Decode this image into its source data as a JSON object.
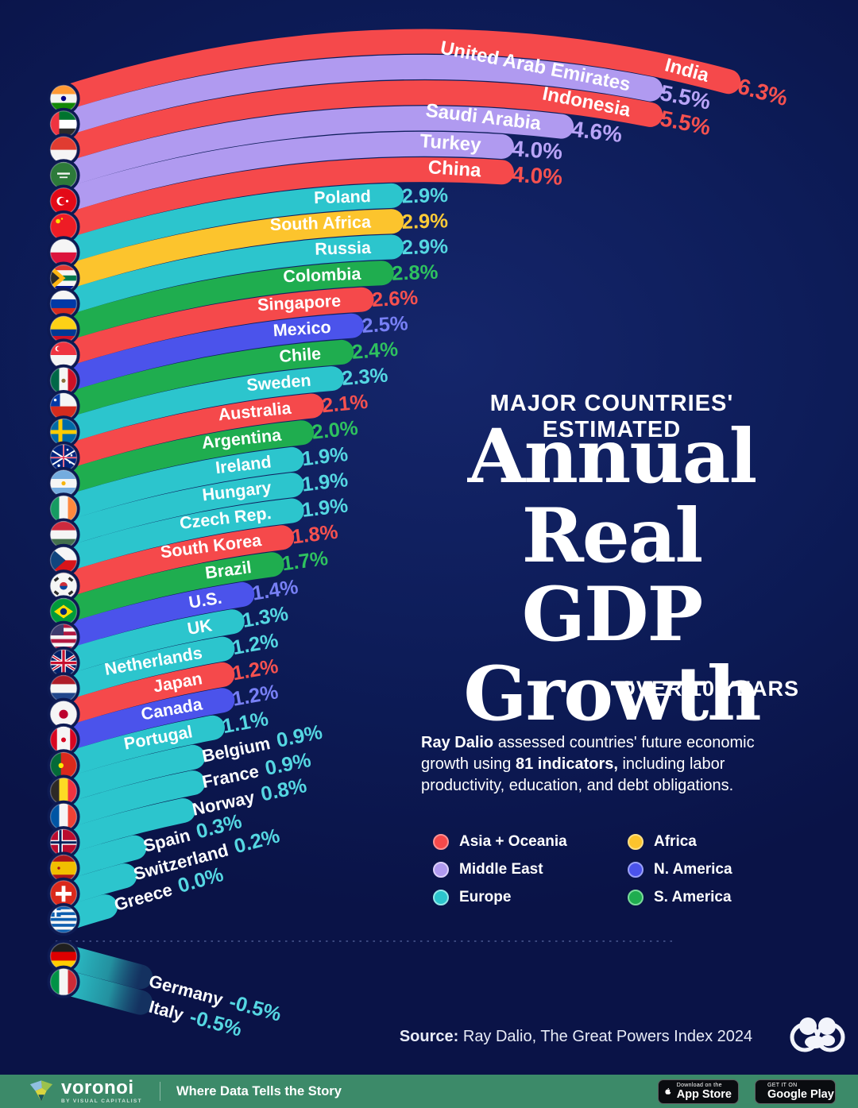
{
  "page": {
    "background": "#0d1c58",
    "footer_background": "#3c8a69"
  },
  "chart_data": {
    "type": "bar",
    "title": "Major Countries' Estimated Annual Real GDP Growth Over 10 Years",
    "title_eyebrow": "MAJOR COUNTRIES' ESTIMATED",
    "title_line1": "Annual",
    "title_line2": "Real GDP",
    "title_line3": "Growth",
    "title_suffix": "OVER 10 YEARS",
    "desc_b1": "Ray Dalio",
    "desc_t1": " assessed countries' future economic growth using ",
    "desc_b2": "81 indicators,",
    "desc_t2": " including labor productivity, education, and debt obligations.",
    "unit": "%",
    "regions": {
      "asia_oceania": {
        "label": "Asia + Oceania",
        "bar": "#F5494B",
        "value": "#F6514F",
        "ring": "#FA9193"
      },
      "middle_east": {
        "label": "Middle East",
        "bar": "#B09AF0",
        "value": "#B9A4F7",
        "ring": "#DCD0FA"
      },
      "europe": {
        "label": "Europe",
        "bar": "#2CC5CD",
        "value": "#55D7E2",
        "ring": "#93E9E9"
      },
      "africa": {
        "label": "Africa",
        "bar": "#FCC42D",
        "value": "#FFCB37",
        "ring": "#FDDF85"
      },
      "n_america": {
        "label": "N. America",
        "bar": "#4B53EB",
        "value": "#7880F6",
        "ring": "#9BA1F8"
      },
      "s_america": {
        "label": "S. America",
        "bar": "#1FAD4F",
        "value": "#2EC15F",
        "ring": "#7BDB9B"
      }
    },
    "legend": [
      {
        "region": "asia_oceania"
      },
      {
        "region": "middle_east"
      },
      {
        "region": "europe"
      },
      {
        "region": "africa"
      },
      {
        "region": "n_america"
      },
      {
        "region": "s_america"
      }
    ],
    "countries": [
      {
        "id": "india",
        "name": "India",
        "value": 6.3,
        "display": "6.3%",
        "region": "asia_oceania"
      },
      {
        "id": "uae",
        "name": "United Arab Emirates",
        "value": 5.5,
        "display": "5.5%",
        "region": "middle_east"
      },
      {
        "id": "indonesia",
        "name": "Indonesia",
        "value": 5.5,
        "display": "5.5%",
        "region": "asia_oceania"
      },
      {
        "id": "saudi_arabia",
        "name": "Saudi Arabia",
        "value": 4.6,
        "display": "4.6%",
        "region": "middle_east"
      },
      {
        "id": "turkey",
        "name": "Turkey",
        "value": 4.0,
        "display": "4.0%",
        "region": "middle_east"
      },
      {
        "id": "china",
        "name": "China",
        "value": 4.0,
        "display": "4.0%",
        "region": "asia_oceania"
      },
      {
        "id": "poland",
        "name": "Poland",
        "value": 2.9,
        "display": "2.9%",
        "region": "europe"
      },
      {
        "id": "south_africa",
        "name": "South Africa",
        "value": 2.9,
        "display": "2.9%",
        "region": "africa"
      },
      {
        "id": "russia",
        "name": "Russia",
        "value": 2.9,
        "display": "2.9%",
        "region": "europe"
      },
      {
        "id": "colombia",
        "name": "Colombia",
        "value": 2.8,
        "display": "2.8%",
        "region": "s_america"
      },
      {
        "id": "singapore",
        "name": "Singapore",
        "value": 2.6,
        "display": "2.6%",
        "region": "asia_oceania"
      },
      {
        "id": "mexico",
        "name": "Mexico",
        "value": 2.5,
        "display": "2.5%",
        "region": "n_america"
      },
      {
        "id": "chile",
        "name": "Chile",
        "value": 2.4,
        "display": "2.4%",
        "region": "s_america"
      },
      {
        "id": "sweden",
        "name": "Sweden",
        "value": 2.3,
        "display": "2.3%",
        "region": "europe"
      },
      {
        "id": "australia",
        "name": "Australia",
        "value": 2.1,
        "display": "2.1%",
        "region": "asia_oceania"
      },
      {
        "id": "argentina",
        "name": "Argentina",
        "value": 2.0,
        "display": "2.0%",
        "region": "s_america"
      },
      {
        "id": "ireland",
        "name": "Ireland",
        "value": 1.9,
        "display": "1.9%",
        "region": "europe"
      },
      {
        "id": "hungary",
        "name": "Hungary",
        "value": 1.9,
        "display": "1.9%",
        "region": "europe"
      },
      {
        "id": "czech_republic",
        "name": "Czech Rep.",
        "value": 1.9,
        "display": "1.9%",
        "region": "europe"
      },
      {
        "id": "south_korea",
        "name": "South Korea",
        "value": 1.8,
        "display": "1.8%",
        "region": "asia_oceania"
      },
      {
        "id": "brazil",
        "name": "Brazil",
        "value": 1.7,
        "display": "1.7%",
        "region": "s_america"
      },
      {
        "id": "us",
        "name": "U.S.",
        "value": 1.4,
        "display": "1.4%",
        "region": "n_america"
      },
      {
        "id": "uk",
        "name": "UK",
        "value": 1.3,
        "display": "1.3%",
        "region": "europe"
      },
      {
        "id": "netherlands",
        "name": "Netherlands",
        "value": 1.2,
        "display": "1.2%",
        "region": "europe"
      },
      {
        "id": "japan",
        "name": "Japan",
        "value": 1.2,
        "display": "1.2%",
        "region": "asia_oceania"
      },
      {
        "id": "canada",
        "name": "Canada",
        "value": 1.2,
        "display": "1.2%",
        "region": "n_america"
      },
      {
        "id": "portugal",
        "name": "Portugal",
        "value": 1.1,
        "display": "1.1%",
        "region": "europe"
      },
      {
        "id": "belgium",
        "name": "Belgium",
        "value": 0.9,
        "display": "0.9%",
        "region": "europe"
      },
      {
        "id": "france",
        "name": "France",
        "value": 0.9,
        "display": "0.9%",
        "region": "europe"
      },
      {
        "id": "norway",
        "name": "Norway",
        "value": 0.8,
        "display": "0.8%",
        "region": "europe"
      },
      {
        "id": "spain",
        "name": "Spain",
        "value": 0.3,
        "display": "0.3%",
        "region": "europe"
      },
      {
        "id": "switzerland",
        "name": "Switzerland",
        "value": 0.2,
        "display": "0.2%",
        "region": "europe"
      },
      {
        "id": "greece",
        "name": "Greece",
        "value": 0.0,
        "display": "0.0%",
        "region": "europe"
      },
      {
        "id": "germany",
        "name": "Germany",
        "value": -0.5,
        "display": "-0.5%",
        "region": "europe",
        "negative": true
      },
      {
        "id": "italy",
        "name": "Italy",
        "value": -0.5,
        "display": "-0.5%",
        "region": "europe",
        "negative": true
      }
    ]
  },
  "source": {
    "prefix": "Source:",
    "text": " Ray Dalio, The Great Powers Index 2024"
  },
  "footer": {
    "brand": "voronoi",
    "brand_sub": "BY VISUAL CAPITALIST",
    "tagline": "Where Data Tells the Story",
    "appstore_top": "Download on the",
    "appstore_bottom": "App Store",
    "gplay_top": "GET IT ON",
    "gplay_bottom": "Google Play"
  }
}
